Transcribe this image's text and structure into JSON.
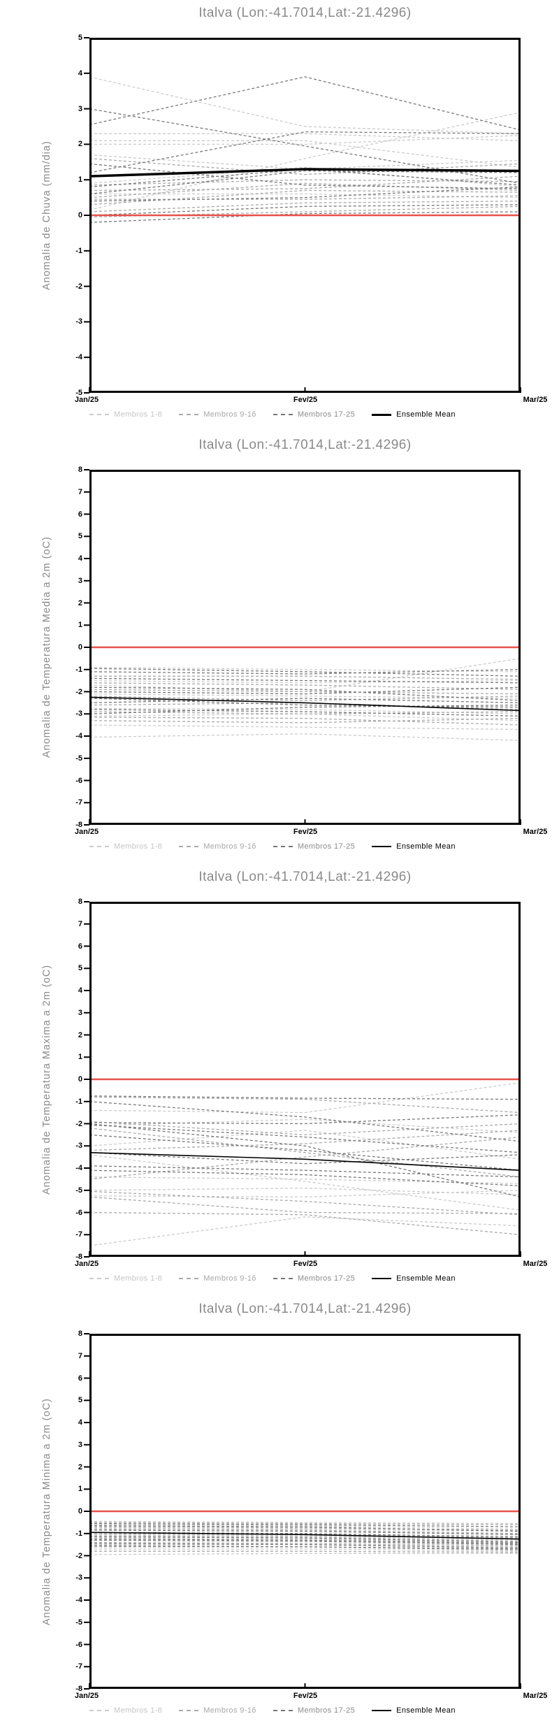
{
  "colors": {
    "membros_1_8": "#cbcbcb",
    "membros_9_16": "#a9a9a9",
    "membros_17_25": "#787878",
    "ensemble_mean": "#000000",
    "zero_line": "#e8524a",
    "title_text": "#8a8a8a",
    "axis": "#000000",
    "legend_text": [
      "#c6c6c6",
      "#a6a6a6",
      "#8b8b8b",
      "#000000"
    ]
  },
  "chart_data": [
    {
      "type": "line",
      "title": "Italva (Lon:-41.7014,Lat:-21.4296)",
      "ylabel": "Anomalia de Chuva (mm/dia)",
      "ylim": [
        -5,
        5
      ],
      "ytick_step": 1,
      "x": [
        "Jan/25",
        "Fev/25",
        "Mar/25"
      ],
      "zero_line": 0,
      "legend": [
        "Membros 1-8",
        "Membros 9-16",
        "Membros 17-25",
        "Ensemble Mean"
      ],
      "mean_width": 3.5,
      "ensemble_mean": [
        1.1,
        1.3,
        1.25
      ],
      "members": {
        "membros_1_8": [
          [
            3.9,
            2.5,
            2.3
          ],
          [
            2.3,
            2.3,
            2.1
          ],
          [
            2.1,
            2.1,
            1.35
          ],
          [
            2.0,
            2.0,
            2.25
          ],
          [
            1.7,
            1.3,
            1.55
          ],
          [
            0.9,
            1.35,
            0.8
          ],
          [
            0.6,
            0.6,
            0.5
          ],
          [
            0.15,
            1.6,
            2.9
          ]
        ],
        "membros_9_16": [
          [
            1.6,
            1.15,
            1.45
          ],
          [
            0.85,
            1.0,
            0.95
          ],
          [
            0.7,
            0.75,
            1.1
          ],
          [
            0.5,
            0.9,
            0.7
          ],
          [
            0.45,
            0.45,
            0.55
          ],
          [
            0.3,
            0.7,
            0.65
          ],
          [
            0.1,
            0.35,
            0.4
          ],
          [
            -0.05,
            0.1,
            0.25
          ]
        ],
        "membros_17_25": [
          [
            3.0,
            1.95,
            0.9
          ],
          [
            2.55,
            3.9,
            2.4
          ],
          [
            1.2,
            2.35,
            2.3
          ],
          [
            1.45,
            0.85,
            0.75
          ],
          [
            0.8,
            1.3,
            0.85
          ],
          [
            0.6,
            1.25,
            1.2
          ],
          [
            0.4,
            0.5,
            0.8
          ],
          [
            0.0,
            0.25,
            0.3
          ],
          [
            -0.2,
            0.05,
            0.1
          ]
        ]
      }
    },
    {
      "type": "line",
      "title": "Italva (Lon:-41.7014,Lat:-21.4296)",
      "ylabel": "Anomalia de Temperatura Media a 2m (oC)",
      "ylim": [
        -8,
        8
      ],
      "ytick_step": 1,
      "x": [
        "Jan/25",
        "Fev/25",
        "Mar/25"
      ],
      "zero_line": 0,
      "legend": [
        "Membros 1-8",
        "Membros 9-16",
        "Membros 17-25",
        "Ensemble Mean"
      ],
      "mean_width": 1.6,
      "ensemble_mean": [
        -2.25,
        -2.5,
        -2.85
      ],
      "members": {
        "membros_1_8": [
          [
            -0.9,
            -1.0,
            -1.1
          ],
          [
            -1.5,
            -1.6,
            -1.5
          ],
          [
            -1.7,
            -2.0,
            -0.5
          ],
          [
            -2.1,
            -2.2,
            -2.3
          ],
          [
            -2.75,
            -2.8,
            -3.0
          ],
          [
            -3.1,
            -3.0,
            -3.3
          ],
          [
            -3.5,
            -3.6,
            -3.7
          ],
          [
            -4.05,
            -3.9,
            -4.2
          ]
        ],
        "membros_9_16": [
          [
            -1.3,
            -1.3,
            -1.45
          ],
          [
            -1.6,
            -1.7,
            -1.9
          ],
          [
            -1.9,
            -2.0,
            -2.1
          ],
          [
            -2.2,
            -2.4,
            -2.2
          ],
          [
            -2.6,
            -2.5,
            -2.8
          ],
          [
            -2.9,
            -3.0,
            -2.9
          ],
          [
            -3.15,
            -3.2,
            -3.5
          ],
          [
            -3.3,
            -3.4,
            -3.2
          ]
        ],
        "membros_17_25": [
          [
            -0.95,
            -1.1,
            -1.3
          ],
          [
            -1.1,
            -1.2,
            -1.0
          ],
          [
            -1.4,
            -1.5,
            -1.6
          ],
          [
            -1.8,
            -1.9,
            -2.4
          ],
          [
            -2.0,
            -2.1,
            -1.8
          ],
          [
            -2.3,
            -2.6,
            -2.7
          ],
          [
            -2.5,
            -2.3,
            -2.5
          ],
          [
            -2.8,
            -2.9,
            -3.1
          ],
          [
            -3.0,
            -2.7,
            -2.6
          ]
        ]
      }
    },
    {
      "type": "line",
      "title": "Italva (Lon:-41.7014,Lat:-21.4296)",
      "ylabel": "Anomalia de Temperatura Maxima a 2m (oC)",
      "ylim": [
        -8,
        8
      ],
      "ytick_step": 1,
      "x": [
        "Jan/25",
        "Fev/25",
        "Mar/25"
      ],
      "zero_line": 0,
      "legend": [
        "Membros 1-8",
        "Membros 9-16",
        "Membros 17-25",
        "Ensemble Mean"
      ],
      "mean_width": 1.6,
      "ensemble_mean": [
        -3.3,
        -3.6,
        -4.1
      ],
      "members": {
        "membros_1_8": [
          [
            -1.4,
            -1.5,
            -0.15
          ],
          [
            -2.1,
            -1.8,
            -2.4
          ],
          [
            -3.0,
            -2.3,
            -3.6
          ],
          [
            -4.4,
            -4.5,
            -4.7
          ],
          [
            -5.0,
            -4.9,
            -5.2
          ],
          [
            -5.25,
            -5.3,
            -5.0
          ],
          [
            -3.4,
            -4.6,
            -5.9
          ],
          [
            -7.5,
            -6.2,
            -6.6
          ]
        ],
        "membros_9_16": [
          [
            -0.8,
            -0.9,
            -1.5
          ],
          [
            -1.9,
            -2.5,
            -2.0
          ],
          [
            -2.2,
            -3.3,
            -4.4
          ],
          [
            -3.2,
            -2.9,
            -2.3
          ],
          [
            -5.05,
            -5.5,
            -6.1
          ],
          [
            -5.3,
            -6.0,
            -6.05
          ],
          [
            -4.5,
            -3.5,
            -2.6
          ],
          [
            -6.0,
            -6.1,
            -7.0
          ]
        ],
        "membros_17_25": [
          [
            -0.75,
            -0.85,
            -0.9
          ],
          [
            -1.0,
            -1.7,
            -2.8
          ],
          [
            -1.95,
            -2.0,
            -1.6
          ],
          [
            -2.05,
            -2.6,
            -3.3
          ],
          [
            -2.5,
            -3.2,
            -4.1
          ],
          [
            -3.3,
            -3.8,
            -3.4
          ],
          [
            -3.9,
            -4.1,
            -4.4
          ],
          [
            -4.1,
            -4.3,
            -4.8
          ],
          [
            -2.0,
            -3.0,
            -5.3
          ]
        ]
      }
    },
    {
      "type": "line",
      "title": "Italva (Lon:-41.7014,Lat:-21.4296)",
      "ylabel": "Anomalia de Temperatura Minima a 2m (oC)",
      "ylim": [
        -8,
        8
      ],
      "ytick_step": 1,
      "x": [
        "Jan/25",
        "Fev/25",
        "Mar/25"
      ],
      "zero_line": 0,
      "legend": [
        "Membros 1-8",
        "Membros 9-16",
        "Membros 17-25",
        "Ensemble Mean"
      ],
      "mean_width": 1.6,
      "ensemble_mean": [
        -0.95,
        -1.05,
        -1.25
      ],
      "members": {
        "membros_1_8": [
          [
            -0.45,
            -0.5,
            -0.55
          ],
          [
            -0.6,
            -0.65,
            -0.8
          ],
          [
            -0.75,
            -0.8,
            -0.9
          ],
          [
            -1.05,
            -1.1,
            -1.3
          ],
          [
            -1.2,
            -1.25,
            -1.45
          ],
          [
            -1.5,
            -1.5,
            -1.6
          ],
          [
            -1.7,
            -1.7,
            -1.8
          ],
          [
            -1.95,
            -1.9,
            -1.9
          ]
        ],
        "membros_9_16": [
          [
            -0.5,
            -0.55,
            -0.6
          ],
          [
            -0.7,
            -0.75,
            -0.85
          ],
          [
            -0.8,
            -0.85,
            -1.0
          ],
          [
            -1.0,
            -1.05,
            -1.2
          ],
          [
            -1.1,
            -1.15,
            -1.35
          ],
          [
            -1.4,
            -1.45,
            -1.55
          ],
          [
            -1.6,
            -1.6,
            -1.75
          ],
          [
            -1.8,
            -1.8,
            -1.85
          ]
        ],
        "membros_17_25": [
          [
            -0.55,
            -0.6,
            -0.7
          ],
          [
            -0.65,
            -0.7,
            -0.9
          ],
          [
            -0.85,
            -0.9,
            -1.05
          ],
          [
            -0.95,
            -1.0,
            -1.15
          ],
          [
            -1.15,
            -1.2,
            -1.4
          ],
          [
            -1.3,
            -1.35,
            -1.5
          ],
          [
            -1.45,
            -1.5,
            -1.65
          ],
          [
            -1.55,
            -1.6,
            -1.7
          ],
          [
            -1.25,
            -1.3,
            -1.45
          ]
        ]
      }
    }
  ]
}
